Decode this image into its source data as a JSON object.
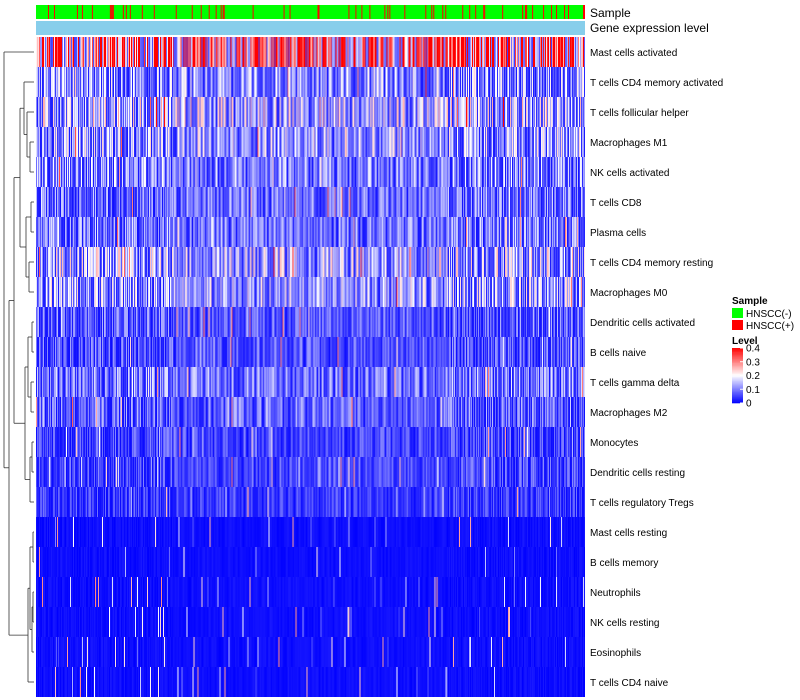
{
  "chart_data": {
    "type": "heatmap",
    "title": "",
    "annotation_labels": [
      "Sample",
      "Gene expression level"
    ],
    "annotation_colors": {
      "Sample": {
        "HNSCC(-)": "#00ff00",
        "HNSCC(+)": "#ff0000"
      },
      "Gene expression level": "#87ceeb"
    },
    "rows": [
      "Mast cells activated",
      "T cells CD4 memory activated",
      "T cells follicular helper",
      "Macrophages M1",
      "NK cells activated",
      "T cells CD8",
      "Plasma cells",
      "T cells CD4 memory resting",
      "Macrophages M0",
      "Dendritic cells activated",
      "B cells naive",
      "T cells gamma delta",
      "Macrophages M2",
      "Monocytes",
      "Dendritic cells resting",
      "T cells regulatory  Tregs",
      "Mast cells resting",
      "B cells memory",
      "Neutrophils",
      "NK cells resting",
      "Eosinophils",
      "T cells CD4 naive"
    ],
    "row_mean_levels": [
      0.33,
      0.12,
      0.15,
      0.13,
      0.11,
      0.09,
      0.1,
      0.14,
      0.13,
      0.08,
      0.07,
      0.1,
      0.08,
      0.06,
      0.06,
      0.05,
      0.02,
      0.02,
      0.03,
      0.02,
      0.02,
      0.03
    ],
    "n_samples": 550,
    "sample_positive_fraction": 0.12,
    "legend": {
      "sample_title": "Sample",
      "sample_items": [
        "HNSCC(-)",
        "HNSCC(+)"
      ],
      "level_title": "Level",
      "level_ticks": [
        "0.4",
        "0.3",
        "0.2",
        "0.1",
        "0"
      ],
      "level_range": [
        0,
        0.4
      ],
      "colors": {
        "low": "#0000ff",
        "mid": "#ffffff",
        "high": "#ff0000"
      },
      "placement": "right"
    }
  }
}
